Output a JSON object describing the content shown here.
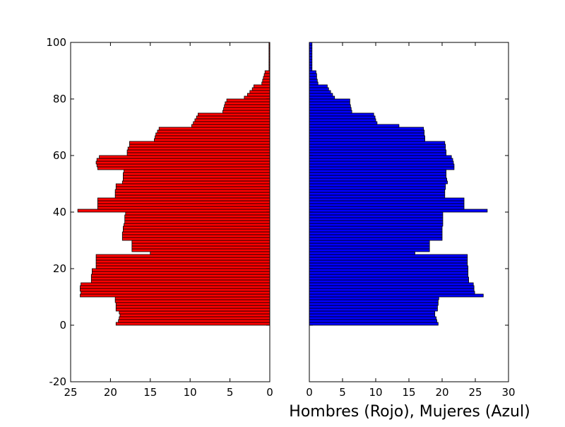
{
  "chart_data": {
    "type": "bar",
    "orientation": "horizontal",
    "layout": "population-pyramid",
    "xlabel": "Hombres (Rojo), Mujeres (Azul)",
    "ylim": [
      -20,
      100
    ],
    "yticks": [
      "-20",
      "0",
      "20",
      "40",
      "60",
      "80",
      "100"
    ],
    "ytick_values": [
      -20,
      0,
      20,
      40,
      60,
      80,
      100
    ],
    "grid": false,
    "series": [
      {
        "name": "Hombres",
        "color": "#ff0000",
        "xlim": [
          25,
          0
        ],
        "xticks": [
          "25",
          "20",
          "15",
          "10",
          "5",
          "0"
        ],
        "xtick_values": [
          25,
          20,
          15,
          10,
          5,
          0
        ],
        "ages": [
          0,
          1,
          2,
          3,
          4,
          5,
          6,
          7,
          8,
          9,
          10,
          11,
          12,
          13,
          14,
          15,
          16,
          17,
          18,
          19,
          20,
          21,
          22,
          23,
          24,
          25,
          26,
          27,
          28,
          29,
          30,
          31,
          32,
          33,
          34,
          35,
          36,
          37,
          38,
          39,
          40,
          41,
          42,
          43,
          44,
          45,
          46,
          47,
          48,
          49,
          50,
          51,
          52,
          53,
          54,
          55,
          56,
          57,
          58,
          59,
          60,
          61,
          62,
          63,
          64,
          65,
          66,
          67,
          68,
          69,
          70,
          71,
          72,
          73,
          74,
          75,
          76,
          77,
          78,
          79,
          80,
          81,
          82,
          83,
          84,
          85,
          86,
          87,
          88,
          89,
          90,
          91,
          92,
          93,
          94,
          95,
          96,
          97,
          98,
          99
        ],
        "values": [
          19.3,
          19.0,
          18.9,
          18.8,
          18.9,
          19.3,
          19.3,
          19.3,
          19.4,
          19.4,
          23.8,
          23.7,
          23.8,
          23.8,
          23.7,
          22.4,
          22.4,
          22.4,
          22.3,
          22.3,
          21.8,
          21.8,
          21.8,
          21.8,
          21.8,
          15.0,
          17.3,
          17.3,
          17.3,
          17.3,
          18.5,
          18.5,
          18.5,
          18.4,
          18.4,
          18.3,
          18.2,
          18.2,
          18.2,
          18.1,
          24.1,
          21.6,
          21.6,
          21.6,
          21.6,
          19.4,
          19.4,
          19.4,
          19.3,
          19.3,
          18.5,
          18.4,
          18.4,
          18.4,
          18.3,
          21.6,
          21.7,
          21.8,
          21.7,
          21.4,
          17.9,
          17.9,
          17.8,
          17.6,
          17.6,
          14.5,
          14.4,
          14.3,
          14.1,
          13.9,
          9.8,
          9.6,
          9.4,
          9.2,
          9.0,
          5.9,
          5.8,
          5.7,
          5.6,
          5.4,
          3.2,
          2.8,
          2.5,
          2.2,
          2.0,
          1.0,
          0.9,
          0.8,
          0.7,
          0.6,
          0.1,
          0.1,
          0.1,
          0.1,
          0.1,
          0.1,
          0.1,
          0.1,
          0.1,
          0.1
        ]
      },
      {
        "name": "Mujeres",
        "color": "#0000ff",
        "xlim": [
          0,
          30
        ],
        "xticks": [
          "0",
          "5",
          "10",
          "15",
          "20",
          "25",
          "30"
        ],
        "xtick_values": [
          0,
          5,
          10,
          15,
          20,
          25,
          30
        ],
        "ages": [
          0,
          1,
          2,
          3,
          4,
          5,
          6,
          7,
          8,
          9,
          10,
          11,
          12,
          13,
          14,
          15,
          16,
          17,
          18,
          19,
          20,
          21,
          22,
          23,
          24,
          25,
          26,
          27,
          28,
          29,
          30,
          31,
          32,
          33,
          34,
          35,
          36,
          37,
          38,
          39,
          40,
          41,
          42,
          43,
          44,
          45,
          46,
          47,
          48,
          49,
          50,
          51,
          52,
          53,
          54,
          55,
          56,
          57,
          58,
          59,
          60,
          61,
          62,
          63,
          64,
          65,
          66,
          67,
          68,
          69,
          70,
          71,
          72,
          73,
          74,
          75,
          76,
          77,
          78,
          79,
          80,
          81,
          82,
          83,
          84,
          85,
          86,
          87,
          88,
          89,
          90,
          91,
          92,
          93,
          94,
          95,
          96,
          97,
          98,
          99
        ],
        "values": [
          19.4,
          19.2,
          19.1,
          18.9,
          18.9,
          19.3,
          19.3,
          19.4,
          19.4,
          19.5,
          26.2,
          24.9,
          24.8,
          24.8,
          24.7,
          24.0,
          24.0,
          23.9,
          23.9,
          23.9,
          23.9,
          23.8,
          23.8,
          23.8,
          23.8,
          15.9,
          18.1,
          18.1,
          18.1,
          18.1,
          20.0,
          20.0,
          20.0,
          20.0,
          20.0,
          20.1,
          20.1,
          20.1,
          20.1,
          20.1,
          26.8,
          23.3,
          23.3,
          23.3,
          23.3,
          20.4,
          20.4,
          20.4,
          20.5,
          20.5,
          20.8,
          20.7,
          20.6,
          20.6,
          20.6,
          21.8,
          21.8,
          21.7,
          21.6,
          21.4,
          20.6,
          20.6,
          20.5,
          20.5,
          20.4,
          17.4,
          17.4,
          17.3,
          17.3,
          17.2,
          13.5,
          10.2,
          10.0,
          9.9,
          9.7,
          6.4,
          6.3,
          6.2,
          6.1,
          6.1,
          3.8,
          3.5,
          3.2,
          2.9,
          2.7,
          1.3,
          1.2,
          1.1,
          1.1,
          1.0,
          0.4,
          0.4,
          0.4,
          0.4,
          0.4,
          0.4,
          0.4,
          0.4,
          0.4,
          0.4
        ]
      }
    ]
  }
}
